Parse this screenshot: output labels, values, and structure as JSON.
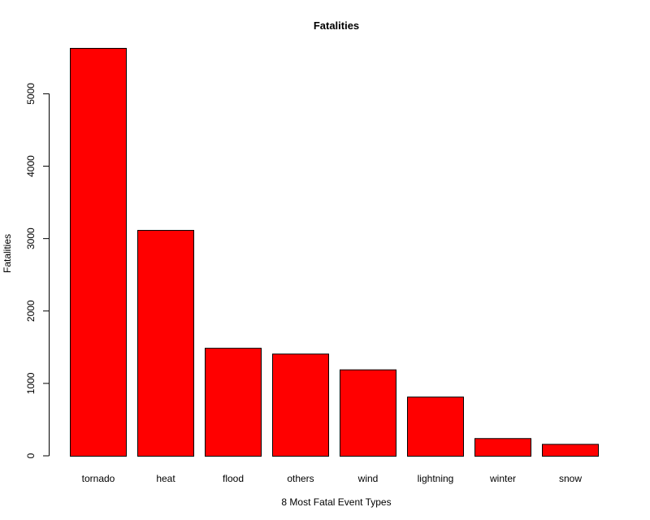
{
  "chart_data": {
    "type": "bar",
    "title": "Fatalities",
    "xlabel": "8 Most Fatal Event Types",
    "ylabel": "Fatalities",
    "categories": [
      "tornado",
      "heat",
      "flood",
      "others",
      "wind",
      "lightning",
      "winter",
      "snow"
    ],
    "values": [
      5633,
      3119,
      1491,
      1411,
      1193,
      817,
      244,
      164
    ],
    "ylim": [
      0,
      5633
    ],
    "yticks": [
      0,
      1000,
      2000,
      3000,
      4000,
      5000
    ],
    "grid": false,
    "bar_color": "#ff0000"
  }
}
